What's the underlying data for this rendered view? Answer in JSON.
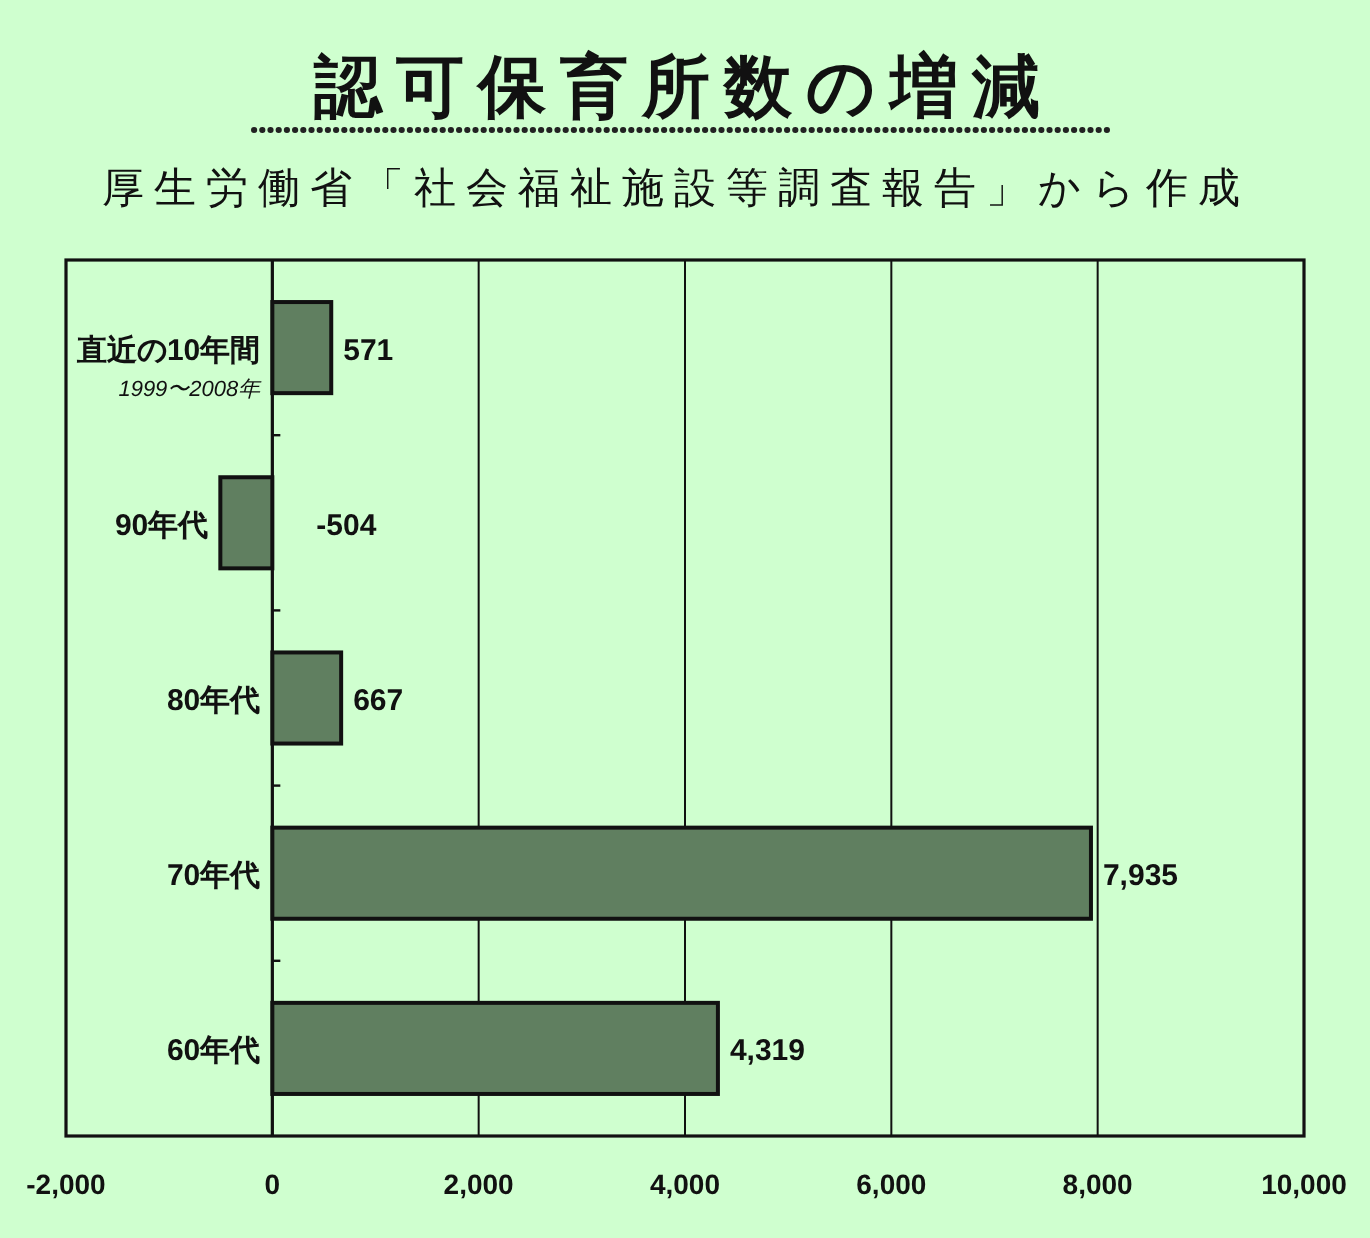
{
  "chart_data": {
    "type": "bar",
    "orientation": "horizontal",
    "title": "認可保育所数の増減",
    "subtitle": "厚生労働省「社会福祉施設等調査報告」から作成",
    "categories": [
      "直近の10年間",
      "90年代",
      "80年代",
      "70年代",
      "60年代"
    ],
    "values": [
      571,
      -504,
      667,
      7935,
      4319
    ],
    "value_labels": [
      "571",
      "-504",
      "667",
      "7,935",
      "4,319"
    ],
    "color": "#607f60",
    "xlim": [
      -2000,
      10000
    ],
    "xticks": [
      {
        "value": -2000,
        "label": "-2,000"
      },
      0,
      {
        "value": 2000,
        "label": "2,000"
      },
      {
        "value": 4000,
        "label": "4,000"
      },
      {
        "value": 6000,
        "label": "6,000"
      },
      {
        "value": 8000,
        "label": "8,000"
      },
      {
        "value": 10000,
        "label": "10,000"
      }
    ],
    "grid": "x",
    "annotations": [
      "1999〜2008年"
    ]
  }
}
